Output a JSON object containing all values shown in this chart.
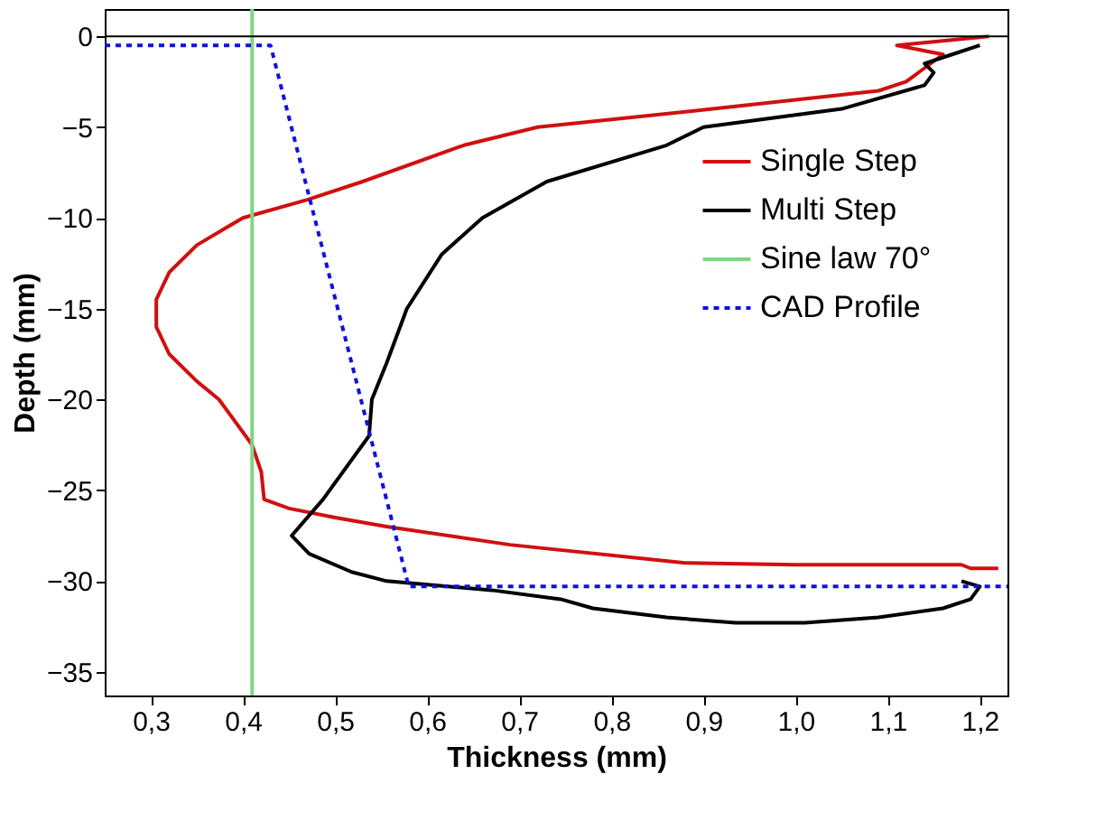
{
  "chart_data": {
    "type": "line",
    "xlabel": "Thickness (mm)",
    "ylabel": "Depth (mm)",
    "xlim": [
      0.25,
      1.23
    ],
    "ylim": [
      -36.3,
      1.5
    ],
    "xticks": [
      {
        "value": 0.3,
        "label": "0,3"
      },
      {
        "value": 0.4,
        "label": "0,4"
      },
      {
        "value": 0.5,
        "label": "0,5"
      },
      {
        "value": 0.6,
        "label": "0,6"
      },
      {
        "value": 0.7,
        "label": "0,7"
      },
      {
        "value": 0.8,
        "label": "0,8"
      },
      {
        "value": 0.9,
        "label": "0,9"
      },
      {
        "value": 1.0,
        "label": "1,0"
      },
      {
        "value": 1.1,
        "label": "1,1"
      },
      {
        "value": 1.2,
        "label": "1,2"
      }
    ],
    "yticks": [
      0,
      -5,
      -10,
      -15,
      -20,
      -25,
      -30,
      -35
    ],
    "grid": false,
    "legend": "top right",
    "marker": "none",
    "ref_lines": [
      {
        "axis": "y",
        "value": 0,
        "color": "#000000"
      }
    ],
    "series": [
      {
        "name": "Single Step",
        "color": "#d01010",
        "line_style": "solid",
        "x": [
          1.21,
          1.11,
          1.16,
          1.12,
          1.09,
          0.91,
          0.72,
          0.64,
          0.53,
          0.47,
          0.4,
          0.35,
          0.32,
          0.306,
          0.306,
          0.32,
          0.35,
          0.374,
          0.41,
          0.42,
          0.423,
          0.45,
          0.5,
          0.556,
          0.69,
          0.88,
          1.0,
          1.1,
          1.18,
          1.19,
          1.22
        ],
        "values": [
          0,
          -0.5,
          -1.0,
          -2.5,
          -3,
          -4,
          -5,
          -6,
          -8,
          -9,
          -10,
          -11.5,
          -13,
          -14.5,
          -16,
          -17.5,
          -19,
          -20,
          -22.5,
          -24,
          -25.5,
          -26,
          -26.5,
          -27,
          -28,
          -29,
          -29.1,
          -29.1,
          -29.1,
          -29.3,
          -29.3
        ]
      },
      {
        "name": "Multi Step",
        "color": "#000000",
        "line_style": "solid",
        "x": [
          1.2,
          1.17,
          1.14,
          1.15,
          1.14,
          1.05,
          0.9,
          0.86,
          0.73,
          0.66,
          0.616,
          0.578,
          0.556,
          0.54,
          0.537,
          0.487,
          0.453,
          0.472,
          0.518,
          0.556,
          0.67,
          0.745,
          0.78,
          0.86,
          0.935,
          1.01,
          1.09,
          1.16,
          1.19,
          1.2,
          1.18
        ],
        "values": [
          -0.5,
          -1,
          -1.5,
          -2,
          -2.7,
          -4,
          -5,
          -6,
          -8,
          -10,
          -12,
          -15,
          -18,
          -20,
          -22,
          -25.5,
          -27.5,
          -28.5,
          -29.5,
          -30,
          -30.5,
          -31,
          -31.5,
          -32,
          -32.3,
          -32.3,
          -32,
          -31.5,
          -31,
          -30.3,
          -30
        ]
      },
      {
        "name": "Sine law 70°",
        "color": "#7fd67f",
        "line_style": "solid",
        "x": [
          0.41,
          0.41
        ],
        "values": [
          1.5,
          -36.3
        ]
      },
      {
        "name": "CAD Profile",
        "color": "#1010e0",
        "line_style": "dotted",
        "x": [
          0.25,
          0.43,
          0.58,
          1.23
        ],
        "values": [
          -0.5,
          -0.5,
          -30.3,
          -30.3
        ]
      }
    ]
  }
}
